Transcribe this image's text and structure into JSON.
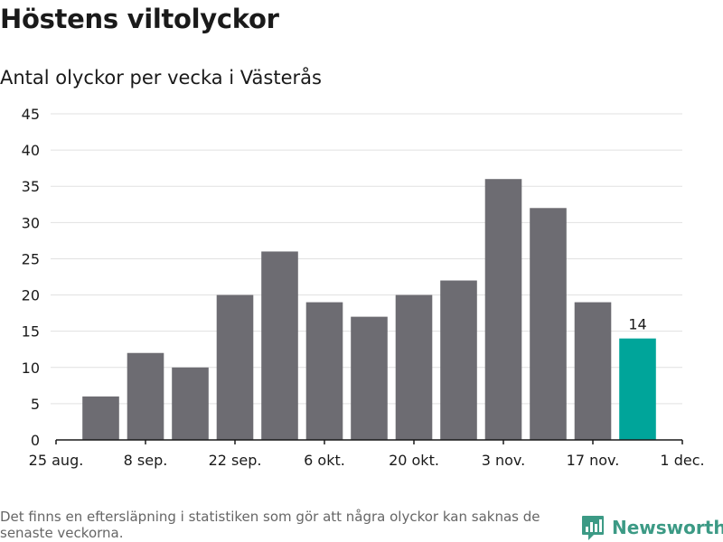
{
  "header": {
    "title": "Höstens viltolyckor",
    "subtitle": "Antal olyckor per vecka i Västerås"
  },
  "footer": {
    "note": "Det finns en eftersläpning i statistiken som gör att några olyckor kan saknas de senaste veckorna.",
    "brand": "Newsworthy"
  },
  "colors": {
    "bar": "#6d6c72",
    "highlight": "#00a59a",
    "grid": "#e1e1e1",
    "axis": "#1a1a1a",
    "brand": "#3c9a85"
  },
  "chart_data": {
    "type": "bar",
    "title": "Höstens viltolyckor",
    "subtitle": "Antal olyckor per vecka i Västerås",
    "xlabel": "",
    "ylabel": "",
    "ylim": [
      0,
      45
    ],
    "yticks": [
      0,
      5,
      10,
      15,
      20,
      25,
      30,
      35,
      40,
      45
    ],
    "grid": true,
    "legend": "none",
    "xtick_labels": [
      "25 aug.",
      "8 sep.",
      "22 sep.",
      "6 okt.",
      "20 okt.",
      "3 nov.",
      "17 nov.",
      "1 dec."
    ],
    "series": [
      {
        "values": [
          6,
          12,
          10,
          20,
          26,
          19,
          17,
          20,
          22,
          36,
          32,
          19,
          14
        ]
      }
    ],
    "highlight_index": 12,
    "data_labels": [
      {
        "index": 12,
        "text": "14"
      }
    ]
  }
}
